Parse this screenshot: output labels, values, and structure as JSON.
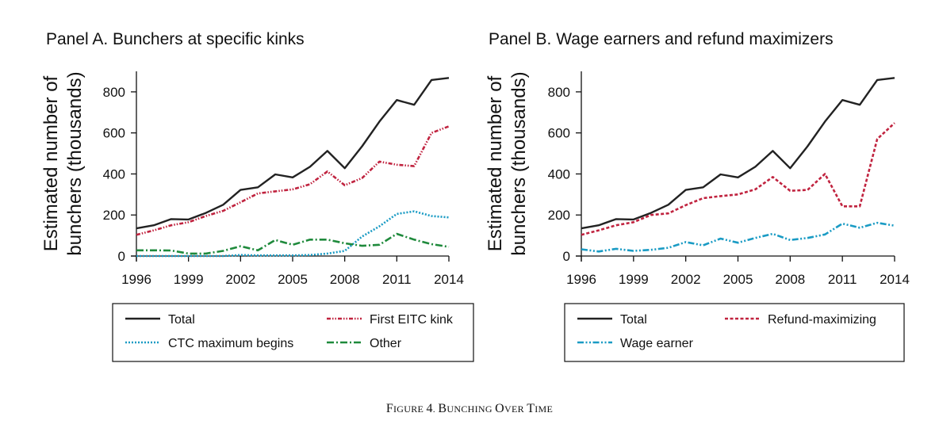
{
  "chart_data": [
    {
      "type": "line",
      "title": "Panel A. Bunchers at specific kinks",
      "ylabel": "Estimated number of bunchers (thousands)",
      "ylabel_lines": [
        "Estimated number of",
        "bunchers (thousands)"
      ],
      "xlabel": "",
      "x": [
        1996,
        1997,
        1998,
        1999,
        2000,
        2001,
        2002,
        2003,
        2004,
        2005,
        2006,
        2007,
        2008,
        2009,
        2010,
        2011,
        2012,
        2013,
        2014
      ],
      "xlim": [
        1996,
        2014
      ],
      "ylim": [
        0,
        900
      ],
      "xticks": [
        1996,
        1999,
        2002,
        2005,
        2008,
        2011,
        2014
      ],
      "yticks": [
        0,
        200,
        400,
        600,
        800
      ],
      "grid": false,
      "legend_position": "bottom",
      "series": [
        {
          "name": "Total",
          "color": "#222222",
          "dash": "solid",
          "values": [
            135,
            150,
            180,
            178,
            210,
            250,
            322,
            335,
            398,
            383,
            435,
            512,
            428,
            535,
            655,
            760,
            737,
            858,
            868
          ]
        },
        {
          "name": "First EITC kink",
          "color": "#c0233f",
          "dash": "dotted-dash",
          "values": [
            103,
            125,
            150,
            165,
            195,
            220,
            262,
            305,
            315,
            325,
            350,
            412,
            345,
            380,
            460,
            445,
            438,
            600,
            632
          ]
        },
        {
          "name": "CTC maximum begins",
          "color": "#1a9bc4",
          "dash": "dotted",
          "values": [
            0,
            0,
            0,
            0,
            0,
            0,
            5,
            3,
            3,
            3,
            5,
            12,
            25,
            95,
            145,
            205,
            218,
            195,
            188
          ]
        },
        {
          "name": "Other",
          "color": "#1f8a3c",
          "dash": "dash-dot",
          "values": [
            28,
            28,
            27,
            12,
            12,
            25,
            48,
            28,
            78,
            55,
            80,
            80,
            62,
            50,
            55,
            108,
            80,
            58,
            45
          ]
        }
      ]
    },
    {
      "type": "line",
      "title": "Panel B. Wage earners and refund maximizers",
      "ylabel": "Estimated number of bunchers (thousands)",
      "ylabel_lines": [
        "Estimated number of",
        "bunchers (thousands)"
      ],
      "xlabel": "",
      "x": [
        1996,
        1997,
        1998,
        1999,
        2000,
        2001,
        2002,
        2003,
        2004,
        2005,
        2006,
        2007,
        2008,
        2009,
        2010,
        2011,
        2012,
        2013,
        2014
      ],
      "xlim": [
        1996,
        2014
      ],
      "ylim": [
        0,
        900
      ],
      "xticks": [
        1996,
        1999,
        2002,
        2005,
        2008,
        2011,
        2014
      ],
      "yticks": [
        0,
        200,
        400,
        600,
        800
      ],
      "grid": false,
      "legend_position": "bottom",
      "series": [
        {
          "name": "Total",
          "color": "#222222",
          "dash": "solid",
          "values": [
            135,
            150,
            180,
            178,
            210,
            250,
            322,
            335,
            398,
            383,
            435,
            512,
            428,
            535,
            655,
            760,
            737,
            858,
            868
          ]
        },
        {
          "name": "Refund-maximizing",
          "color": "#c0233f",
          "dash": "dashed",
          "values": [
            103,
            125,
            150,
            165,
            200,
            208,
            248,
            282,
            292,
            300,
            325,
            385,
            318,
            322,
            400,
            242,
            242,
            570,
            648
          ]
        },
        {
          "name": "Wage earner",
          "color": "#1a9bc4",
          "dash": "dash-dot-dot",
          "values": [
            33,
            22,
            35,
            25,
            30,
            40,
            68,
            52,
            85,
            65,
            88,
            108,
            78,
            88,
            105,
            158,
            138,
            162,
            148
          ]
        }
      ]
    }
  ],
  "caption": "Figure 4. Bunching over Time"
}
